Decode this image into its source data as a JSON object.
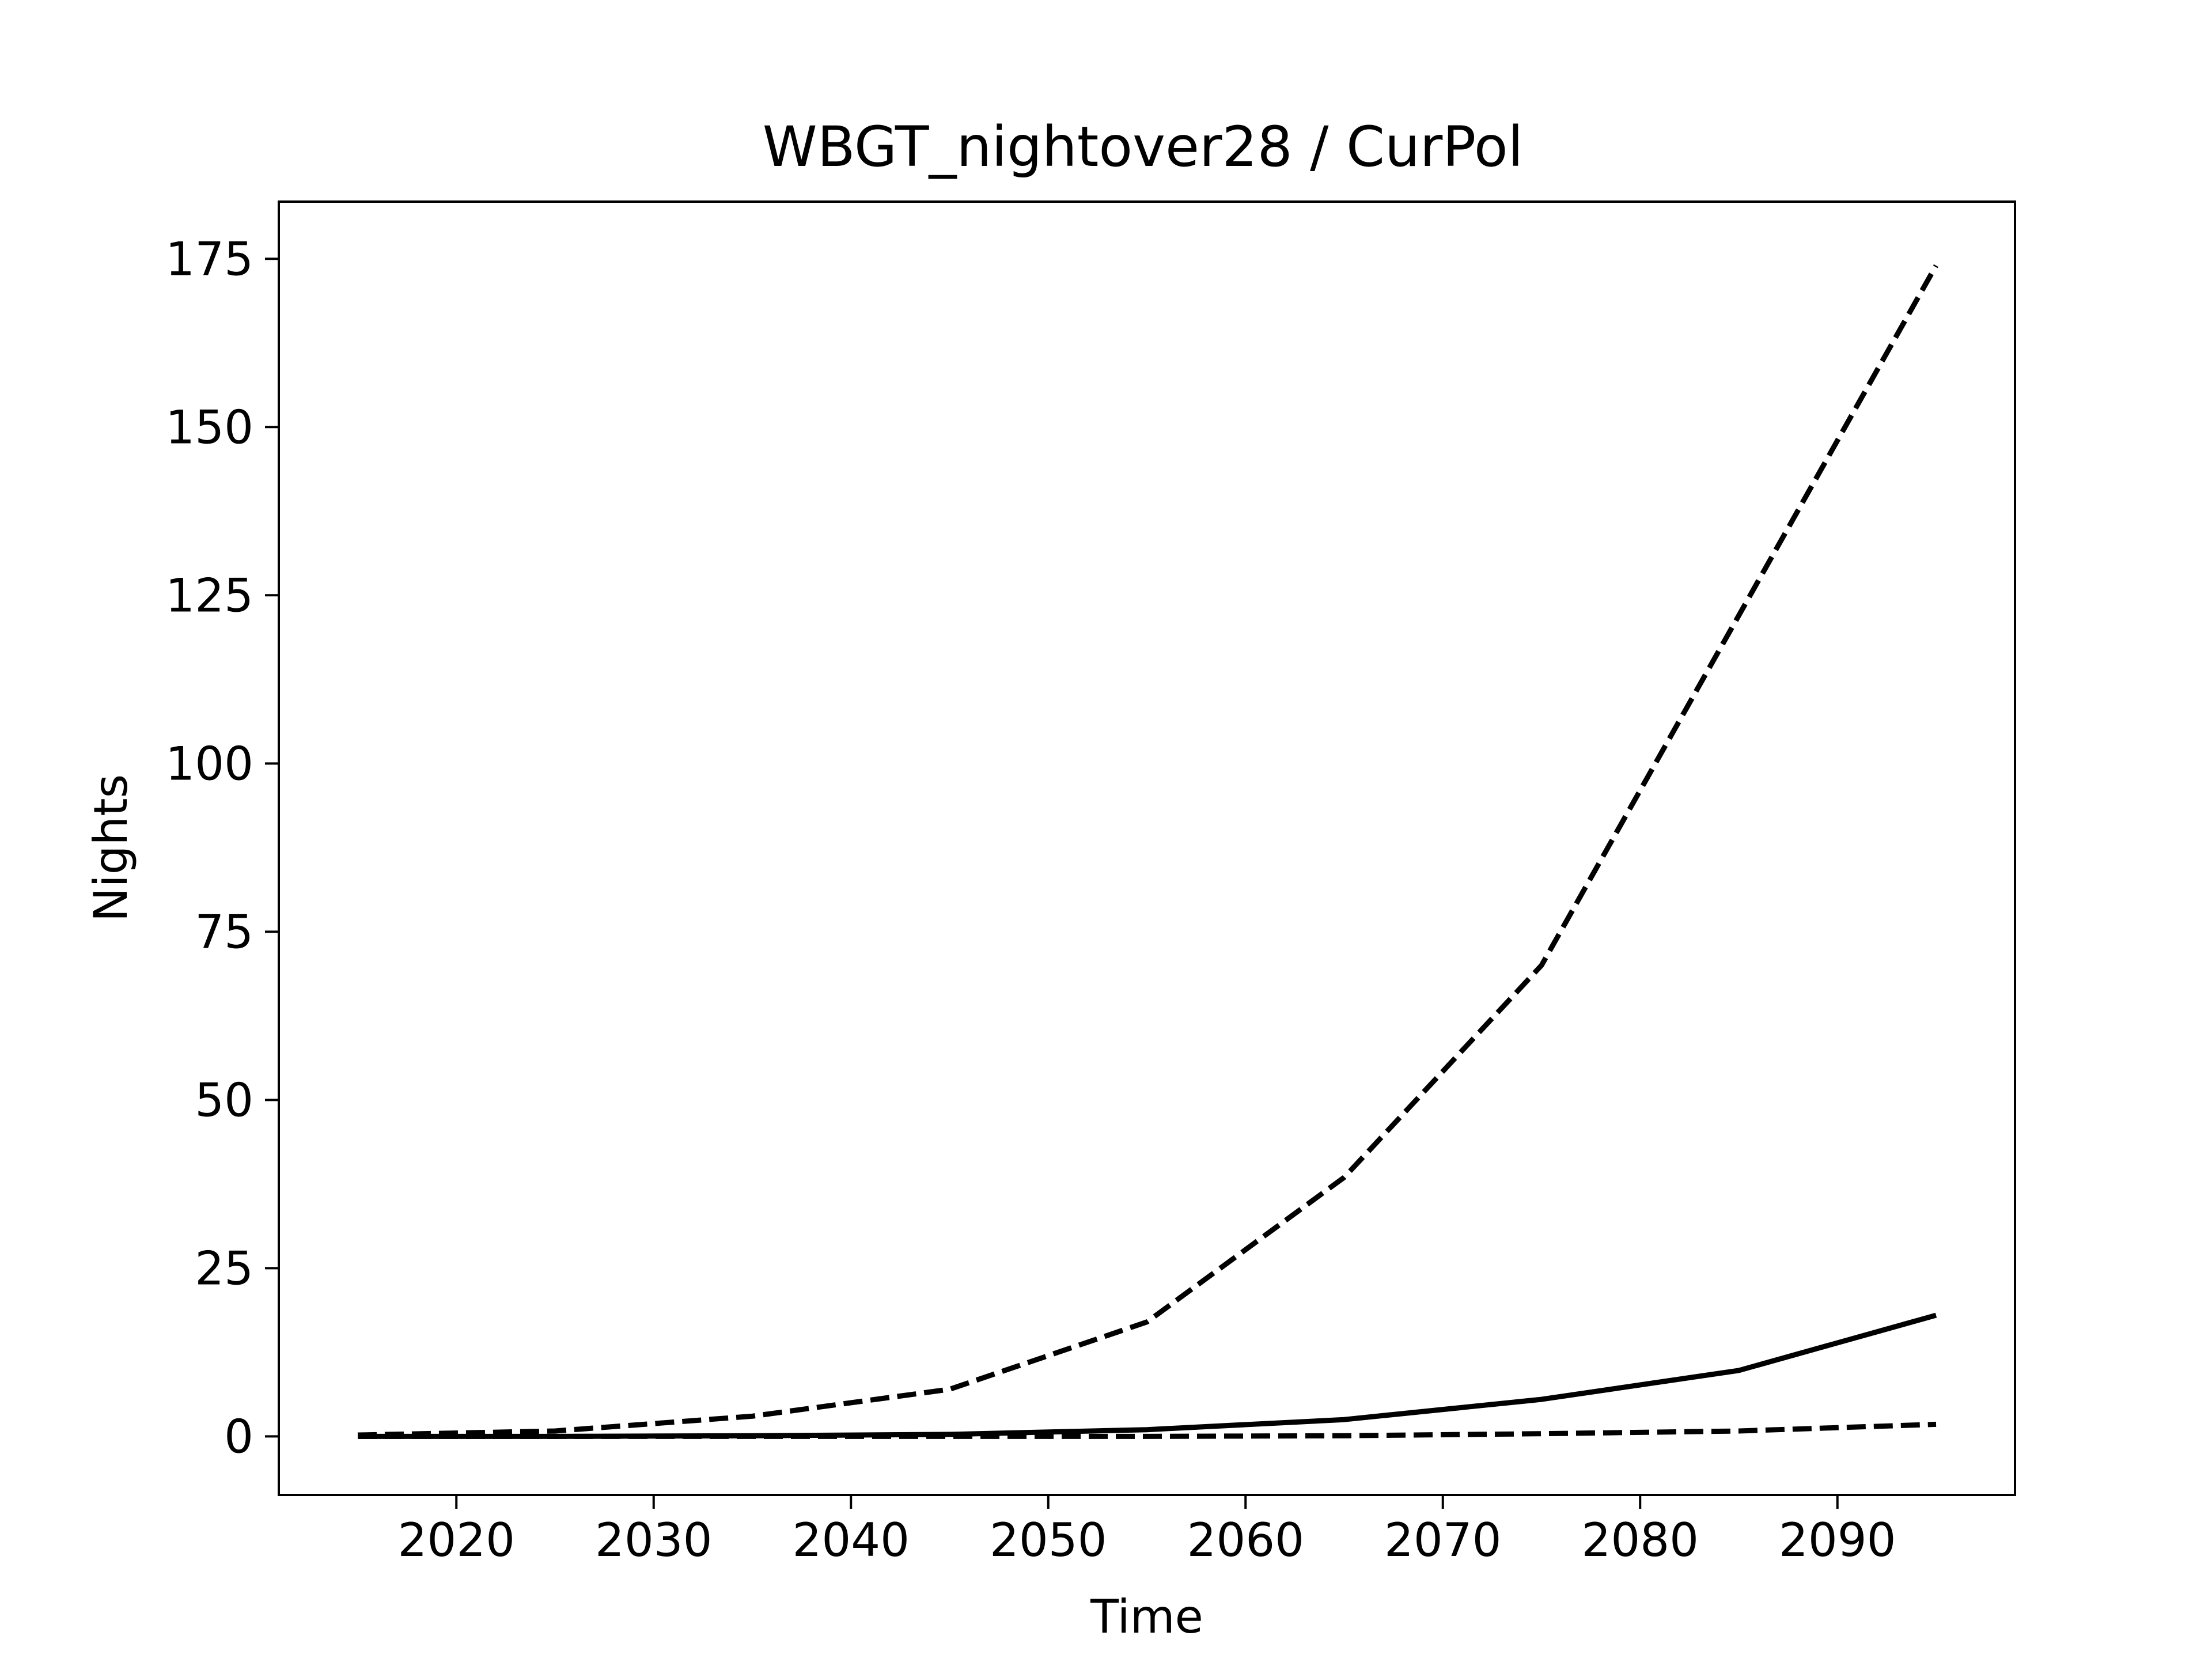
{
  "chart_data": {
    "type": "line",
    "title": "WBGT_nightover28 / CurPol",
    "xlabel": "Time",
    "ylabel": "Nights",
    "xlim": [
      2011,
      2099
    ],
    "ylim": [
      -8.7,
      183.5
    ],
    "xticks": [
      2020,
      2030,
      2040,
      2050,
      2060,
      2070,
      2080,
      2090
    ],
    "yticks": [
      0,
      25,
      50,
      75,
      100,
      125,
      150,
      175
    ],
    "grid": false,
    "legend": "none",
    "x": [
      2015,
      2025,
      2035,
      2045,
      2055,
      2065,
      2075,
      2085,
      2095
    ],
    "series": [
      {
        "style": "dashed",
        "color": "#000000",
        "values": [
          0.2,
          0.8,
          3.0,
          7.0,
          17.0,
          38.5,
          70.0,
          122.0,
          174.0
        ]
      },
      {
        "style": "solid",
        "color": "#000000",
        "values": [
          0.0,
          0.0,
          0.1,
          0.3,
          1.0,
          2.5,
          5.5,
          9.8,
          18.0
        ]
      },
      {
        "style": "dashed",
        "color": "#000000",
        "values": [
          0.0,
          0.0,
          0.0,
          0.0,
          0.0,
          0.1,
          0.4,
          0.8,
          1.8
        ]
      }
    ]
  }
}
